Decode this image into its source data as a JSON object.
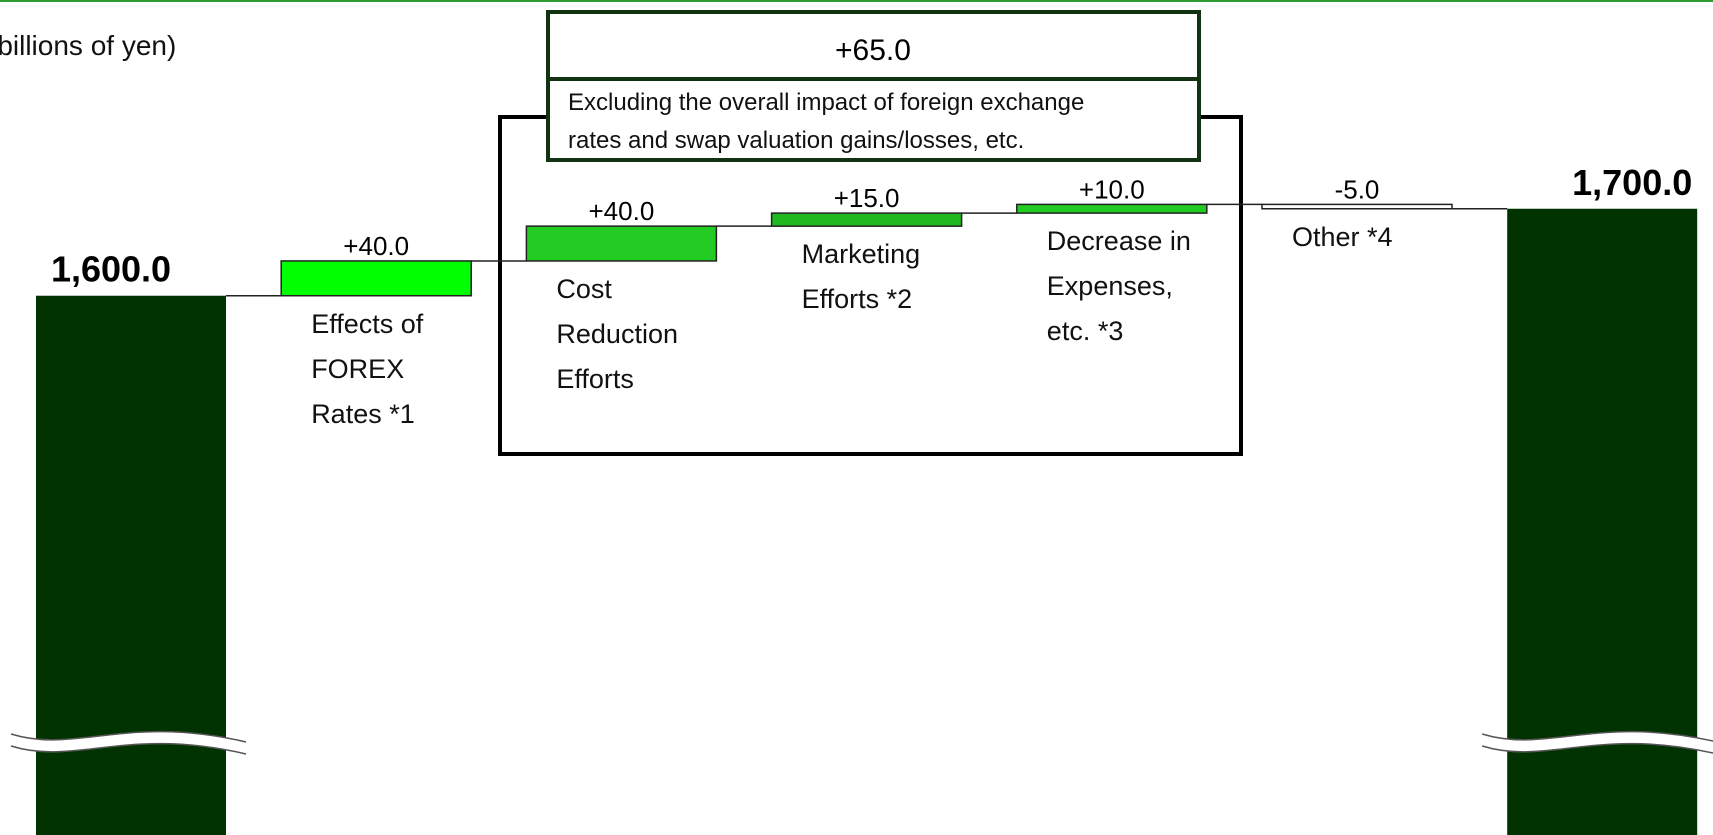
{
  "chart_data": {
    "type": "waterfall",
    "unit_label": "(billions of yen)",
    "categories": [
      null,
      "Effects of\nFOREX\nRates *1",
      "Cost\nReduction\nEfforts",
      "Marketing\nEfforts *2",
      "Decrease in\nExpenses,\netc. *3",
      "Other *4",
      null
    ],
    "values": [
      1600.0,
      40.0,
      40.0,
      15.0,
      10.0,
      -5.0,
      1700.0
    ],
    "value_labels": [
      "1,600.0",
      "+40.0",
      "+40.0",
      "+15.0",
      "+10.0",
      "-5.0",
      "1,700.0"
    ],
    "kinds": [
      "total",
      "step",
      "step",
      "step",
      "step",
      "step",
      "total"
    ],
    "colors": [
      "#003300",
      "#00ff00",
      "#22cc22",
      "#1fb81f",
      "#22cc22",
      "#ffffff",
      "#003300"
    ],
    "ylim": [
      980,
      1940
    ],
    "broken_axis": true,
    "annotation": {
      "value_text": "+65.0",
      "note": "Excluding the overall impact of foreign exchange\nrates and swap valuation gains/losses, etc."
    }
  }
}
